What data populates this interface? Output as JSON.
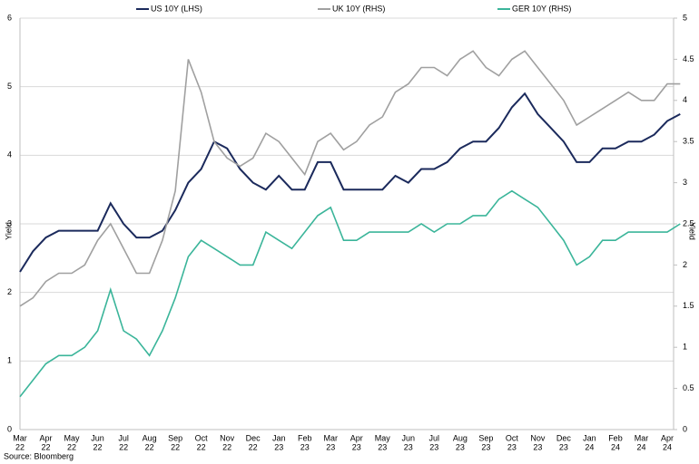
{
  "chart_data": {
    "type": "line",
    "categories": [
      [
        "Mar",
        "22"
      ],
      null,
      [
        "Apr",
        "22"
      ],
      null,
      [
        "May",
        "22"
      ],
      null,
      [
        "Jun",
        "22"
      ],
      null,
      [
        "Jul",
        "22"
      ],
      null,
      [
        "Aug",
        "22"
      ],
      null,
      [
        "Sep",
        "22"
      ],
      null,
      [
        "Oct",
        "22"
      ],
      null,
      [
        "Nov",
        "22"
      ],
      null,
      [
        "Dec",
        "22"
      ],
      null,
      [
        "Jan",
        "23"
      ],
      null,
      [
        "Feb",
        "23"
      ],
      null,
      [
        "Mar",
        "23"
      ],
      null,
      [
        "Apr",
        "23"
      ],
      null,
      [
        "May",
        "23"
      ],
      null,
      [
        "Jun",
        "23"
      ],
      null,
      [
        "Jul",
        "23"
      ],
      null,
      [
        "Aug",
        "23"
      ],
      null,
      [
        "Sep",
        "23"
      ],
      null,
      [
        "Oct",
        "23"
      ],
      null,
      [
        "Nov",
        "23"
      ],
      null,
      [
        "Dec",
        "23"
      ],
      null,
      [
        "Jan",
        "24"
      ],
      null,
      [
        "Feb",
        "24"
      ],
      null,
      [
        "Mar",
        "24"
      ],
      null,
      [
        "Apr",
        "24"
      ],
      null
    ],
    "series": [
      {
        "name": "US 10Y (LHS)",
        "color": "#1b2a5c",
        "values": [
          2.3,
          2.6,
          2.8,
          2.9,
          2.9,
          2.9,
          2.9,
          3.3,
          3.0,
          2.8,
          2.8,
          2.9,
          3.2,
          3.6,
          3.8,
          4.2,
          4.1,
          3.8,
          3.6,
          3.5,
          3.7,
          3.5,
          3.5,
          3.9,
          3.9,
          3.5,
          3.5,
          3.5,
          3.5,
          3.7,
          3.6,
          3.8,
          3.8,
          3.9,
          4.1,
          4.2,
          4.2,
          4.4,
          4.7,
          4.9,
          4.6,
          4.4,
          4.2,
          3.9,
          3.9,
          4.1,
          4.1,
          4.2,
          4.2,
          4.3,
          4.5,
          4.6
        ]
      },
      {
        "name": "UK 10Y (RHS)",
        "color": "#a0a0a0",
        "axis": "y2",
        "values": [
          1.5,
          1.6,
          1.8,
          1.9,
          1.9,
          2.0,
          2.3,
          2.5,
          2.2,
          1.9,
          1.9,
          2.3,
          2.9,
          4.5,
          4.1,
          3.5,
          3.3,
          3.2,
          3.3,
          3.6,
          3.5,
          3.3,
          3.1,
          3.5,
          3.6,
          3.4,
          3.5,
          3.7,
          3.8,
          4.1,
          4.2,
          4.4,
          4.4,
          4.3,
          4.5,
          4.6,
          4.4,
          4.3,
          4.5,
          4.6,
          4.4,
          4.2,
          4.0,
          3.7,
          3.8,
          3.9,
          4.0,
          4.1,
          4.0,
          4.0,
          4.2,
          4.2
        ]
      },
      {
        "name": "GER 10Y (RHS)",
        "color": "#3bb59a",
        "axis": "y2",
        "values": [
          0.4,
          0.6,
          0.8,
          0.9,
          0.9,
          1.0,
          1.2,
          1.7,
          1.2,
          1.1,
          0.9,
          1.2,
          1.6,
          2.1,
          2.3,
          2.2,
          2.1,
          2.0,
          2.0,
          2.4,
          2.3,
          2.2,
          2.4,
          2.6,
          2.7,
          2.3,
          2.3,
          2.4,
          2.4,
          2.4,
          2.4,
          2.5,
          2.4,
          2.5,
          2.5,
          2.6,
          2.6,
          2.8,
          2.9,
          2.8,
          2.7,
          2.5,
          2.3,
          2.0,
          2.1,
          2.3,
          2.3,
          2.4,
          2.4,
          2.4,
          2.4,
          2.5
        ]
      }
    ],
    "ylim": [
      0,
      6
    ],
    "yticks": [
      0,
      1,
      2,
      3,
      4,
      5,
      6
    ],
    "y2lim": [
      0,
      5
    ],
    "y2ticks": [
      0,
      0.5,
      1,
      1.5,
      2,
      2.5,
      3,
      3.5,
      4,
      4.5,
      5
    ],
    "ylabel": "Yield",
    "y2label": "Yield",
    "grid": true,
    "legend": "top",
    "source": "Source: Bloomberg"
  }
}
